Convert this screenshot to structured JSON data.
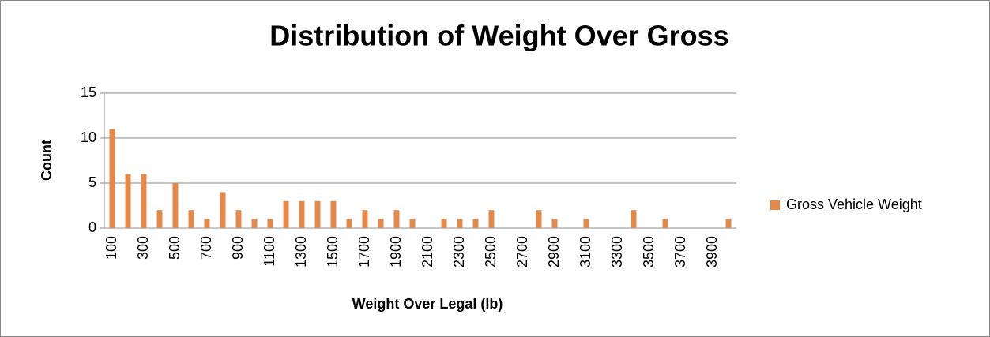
{
  "chart_data": {
    "type": "bar",
    "title": "Distribution of Weight Over Gross",
    "x_label": "Weight Over Legal (lb)",
    "y_label": "Count",
    "categories": [
      "100",
      null,
      "300",
      null,
      "500",
      null,
      "700",
      null,
      "900",
      null,
      "1100",
      null,
      "1300",
      null,
      "1500",
      null,
      "1700",
      null,
      "1900",
      null,
      "2100",
      null,
      "2300",
      null,
      "2500",
      null,
      "2700",
      null,
      "2900",
      null,
      "3100",
      null,
      "3300",
      null,
      "3500",
      null,
      "3700",
      null,
      "3900",
      null
    ],
    "series": [
      {
        "name": "Gross Vehicle Weight",
        "color": "#e4894c",
        "values": [
          11,
          6,
          6,
          2,
          5,
          2,
          1,
          4,
          2,
          1,
          1,
          3,
          3,
          3,
          3,
          1,
          2,
          1,
          2,
          1,
          0,
          1,
          1,
          1,
          2,
          0,
          0,
          2,
          1,
          0,
          1,
          0,
          0,
          2,
          0,
          1,
          0,
          0,
          0,
          1
        ]
      }
    ],
    "ylim": [
      0,
      15
    ],
    "yticks": [
      0,
      5,
      10,
      15
    ],
    "grid": true,
    "legend": "right"
  }
}
